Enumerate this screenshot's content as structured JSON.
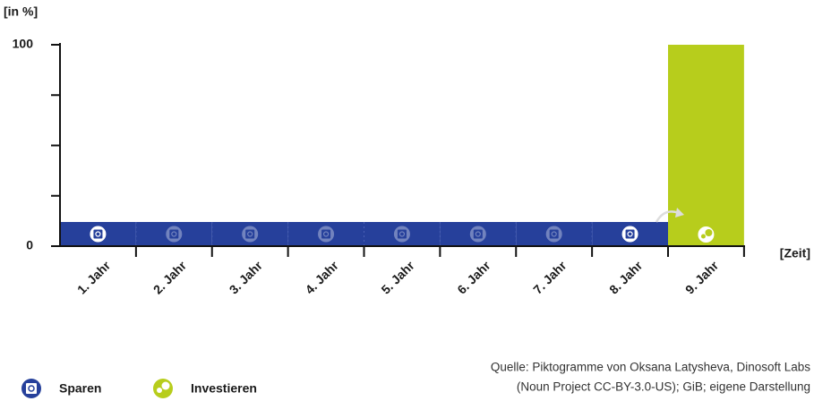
{
  "chart_data": {
    "type": "bar",
    "y_label": "[in %]",
    "x_label": "[Zeit]",
    "categories": [
      "1. Jahr",
      "2. Jahr",
      "3. Jahr",
      "4. Jahr",
      "5. Jahr",
      "6. Jahr",
      "7. Jahr",
      "8. Jahr",
      "9. Jahr"
    ],
    "series": [
      {
        "name": "Sparen",
        "color": "#26409b",
        "values": [
          12,
          12,
          12,
          12,
          12,
          12,
          12,
          12,
          null
        ]
      },
      {
        "name": "Investieren",
        "color": "#b7cd1c",
        "values": [
          null,
          null,
          null,
          null,
          null,
          null,
          null,
          null,
          100
        ]
      }
    ],
    "ylim": [
      0,
      100
    ],
    "yticks": [
      0,
      100
    ],
    "yticks_minor": [
      25,
      50,
      75
    ],
    "legend": "bottom-left",
    "source": [
      "Quelle:  Piktogramme von Oksana Latysheva, Dinosoft Labs",
      "(Noun Project CC-BY-3.0-US); GiB; eigene Darstellung"
    ]
  }
}
